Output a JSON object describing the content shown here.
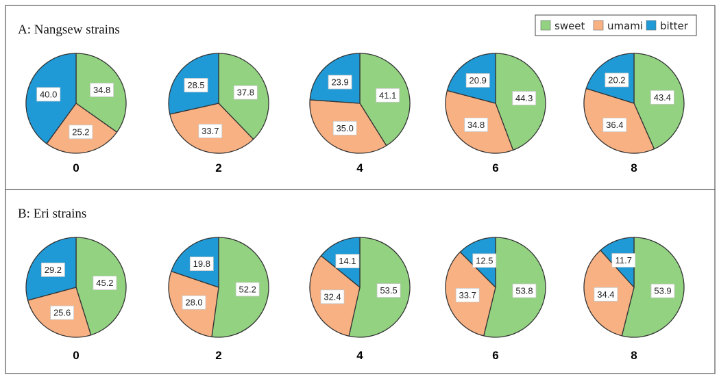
{
  "colors": {
    "sweet": "#92d281",
    "umami": "#f8b183",
    "bitter": "#1f9ad6",
    "border": "#333333"
  },
  "legend": {
    "items": [
      {
        "key": "sweet",
        "label": "sweet"
      },
      {
        "key": "umami",
        "label": "umami"
      },
      {
        "key": "bitter",
        "label": "bitter"
      }
    ]
  },
  "chart_data": [
    {
      "type": "pie",
      "title": "A: Nangsew strains",
      "slice_order": [
        "sweet",
        "umami",
        "bitter"
      ],
      "categories": [
        "0",
        "2",
        "4",
        "6",
        "8"
      ],
      "pies": [
        {
          "category": "0",
          "values": {
            "sweet": 34.8,
            "umami": 25.2,
            "bitter": 40.0
          }
        },
        {
          "category": "2",
          "values": {
            "sweet": 37.8,
            "umami": 33.7,
            "bitter": 28.5
          }
        },
        {
          "category": "4",
          "values": {
            "sweet": 41.1,
            "umami": 35.0,
            "bitter": 23.9
          }
        },
        {
          "category": "6",
          "values": {
            "sweet": 44.3,
            "umami": 34.8,
            "bitter": 20.9
          }
        },
        {
          "category": "8",
          "values": {
            "sweet": 43.4,
            "umami": 36.4,
            "bitter": 20.2
          }
        }
      ]
    },
    {
      "type": "pie",
      "title": "B: Eri strains",
      "slice_order": [
        "sweet",
        "umami",
        "bitter"
      ],
      "categories": [
        "0",
        "2",
        "4",
        "6",
        "8"
      ],
      "pies": [
        {
          "category": "0",
          "values": {
            "sweet": 45.2,
            "umami": 25.6,
            "bitter": 29.2
          }
        },
        {
          "category": "2",
          "values": {
            "sweet": 52.2,
            "umami": 28.0,
            "bitter": 19.8
          }
        },
        {
          "category": "4",
          "values": {
            "sweet": 53.5,
            "umami": 32.4,
            "bitter": 14.1
          }
        },
        {
          "category": "6",
          "values": {
            "sweet": 53.8,
            "umami": 33.7,
            "bitter": 12.5
          }
        },
        {
          "category": "8",
          "values": {
            "sweet": 53.9,
            "umami": 34.4,
            "bitter": 11.7
          }
        }
      ]
    }
  ]
}
